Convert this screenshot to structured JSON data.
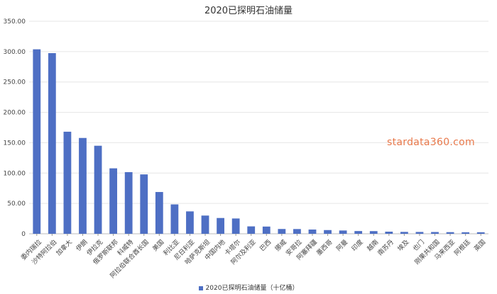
{
  "chart_data": {
    "type": "bar",
    "title": "2020已探明石油储量",
    "watermark": "stardata360.com",
    "color": "#4e6fc4",
    "ylim": [
      0,
      350
    ],
    "yticks": [
      "0",
      "50.00",
      "100.00",
      "150.00",
      "200.00",
      "250.00",
      "300.00",
      "350.00"
    ],
    "grid": true,
    "legend_position": "bottom",
    "categories": [
      "委内瑞拉",
      "沙特阿拉伯",
      "加拿大",
      "伊朗",
      "伊拉克",
      "俄罗斯联邦",
      "科威特",
      "阿拉伯联合酋长国",
      "美国",
      "利比亚",
      "尼日利亚",
      "哈萨克斯坦",
      "中国内地",
      "卡塔尔",
      "阿尔及利亚",
      "巴西",
      "挪威",
      "安哥拉",
      "阿塞拜疆",
      "墨西哥",
      "阿曼",
      "印度",
      "越南",
      "南苏丹",
      "埃及",
      "也门",
      "刚果共和国",
      "马来西亚",
      "阿根廷",
      "英国"
    ],
    "series": [
      {
        "name": "2020已探明石油储量（十亿桶）",
        "values": [
          303.8,
          297.5,
          168.1,
          157.8,
          145.0,
          107.8,
          101.5,
          97.8,
          68.8,
          48.4,
          36.9,
          30.0,
          26.0,
          25.2,
          12.2,
          11.9,
          7.9,
          7.8,
          7.0,
          6.1,
          5.4,
          4.5,
          4.4,
          3.5,
          3.1,
          3.0,
          2.9,
          2.7,
          2.5,
          2.5
        ]
      }
    ]
  }
}
